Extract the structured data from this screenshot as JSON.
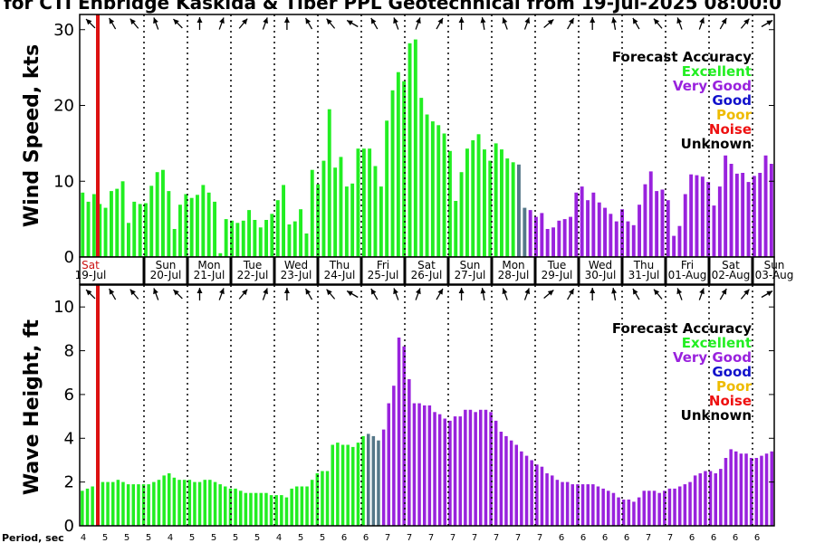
{
  "title": "for CTI Enbridge  Kaskida & Tiber PPL Geotechnical from 19-Jul-2025 08:00:0",
  "colors": {
    "Excellent": "#22ee22",
    "Very Good": "#9922dd",
    "Good": "#1111cc",
    "Poor": "#eebb00",
    "Noise": "#ee1111",
    "Unknown": "#000000",
    "transition": "#557788",
    "now_line": "#dd1111"
  },
  "legend": {
    "title": "Forecast Accuracy",
    "entries": [
      "Excellent",
      "Very Good",
      "Good",
      "Poor",
      "Noise",
      "Unknown"
    ]
  },
  "days": [
    {
      "name": "Sat",
      "date": "19-Jul"
    },
    {
      "name": "Sun",
      "date": "20-Jul"
    },
    {
      "name": "Mon",
      "date": "21-Jul"
    },
    {
      "name": "Tue",
      "date": "22-Jul"
    },
    {
      "name": "Wed",
      "date": "23-Jul"
    },
    {
      "name": "Thu",
      "date": "24-Jul"
    },
    {
      "name": "Fri",
      "date": "25-Jul"
    },
    {
      "name": "Sat",
      "date": "26-Jul"
    },
    {
      "name": "Sun",
      "date": "27-Jul"
    },
    {
      "name": "Mon",
      "date": "28-Jul"
    },
    {
      "name": "Tue",
      "date": "29-Jul"
    },
    {
      "name": "Wed",
      "date": "30-Jul"
    },
    {
      "name": "Thu",
      "date": "31-Jul"
    },
    {
      "name": "Fri",
      "date": "01-Aug"
    },
    {
      "name": "Sat",
      "date": "02-Aug"
    },
    {
      "name": "Sun",
      "date": "03-Aug"
    }
  ],
  "period_label": "Period, sec",
  "chart_data": [
    {
      "type": "bar",
      "ylabel": "Wind Speed, kts",
      "ylim": [
        0,
        32
      ],
      "yticks": [
        0,
        10,
        20,
        30
      ],
      "values": [
        8.5,
        7.3,
        8.3,
        7.0,
        6.5,
        8.7,
        9.0,
        10.0,
        4.5,
        7.3,
        7.0,
        7.1,
        9.4,
        11.2,
        11.5,
        8.7,
        3.7,
        6.9,
        8.3,
        7.8,
        8.2,
        9.5,
        8.5,
        7.3,
        0.5,
        5.0,
        4.8,
        4.5,
        4.8,
        6.2,
        4.9,
        3.9,
        4.9,
        5.7,
        7.5,
        9.5,
        4.3,
        4.7,
        6.3,
        3.1,
        11.5,
        9.6,
        12.7,
        19.5,
        11.8,
        13.2,
        9.3,
        9.7,
        14.3,
        14.3,
        14.3,
        12.0,
        9.3,
        18.0,
        22.0,
        24.4,
        23.2,
        28.2,
        28.7,
        21.0,
        18.8,
        17.9,
        17.4,
        16.3,
        14.0,
        7.4,
        11.2,
        14.3,
        15.4,
        16.2,
        14.2,
        12.7,
        15.0,
        14.2,
        13.0,
        12.5,
        12.2,
        6.5,
        6.2,
        5.3,
        5.8,
        3.7,
        3.9,
        4.8,
        5.0,
        5.3,
        8.5,
        9.3,
        7.5,
        8.5,
        7.2,
        6.5,
        5.7,
        4.7,
        6.3,
        4.7,
        4.2,
        6.9,
        9.6,
        11.3,
        8.7,
        8.9,
        7.5,
        2.8,
        4.1,
        8.3,
        10.9,
        10.8,
        10.6,
        9.9,
        6.8,
        9.3,
        13.4,
        12.3,
        11.0,
        11.1,
        9.9,
        10.7,
        11.1,
        13.4,
        12.3
      ],
      "categories_split": {
        "excellent_end": 77,
        "transition": [
          76,
          77
        ]
      }
    },
    {
      "type": "bar",
      "ylabel": "Wave Height, ft",
      "ylim": [
        0,
        11
      ],
      "yticks": [
        0,
        2,
        4,
        6,
        8,
        10
      ],
      "values": [
        1.6,
        1.7,
        1.8,
        1.8,
        2.0,
        2.0,
        2.0,
        2.1,
        2.0,
        1.9,
        1.9,
        1.9,
        1.9,
        1.9,
        2.0,
        2.1,
        2.3,
        2.4,
        2.2,
        2.1,
        2.1,
        2.1,
        2.0,
        2.0,
        2.1,
        2.1,
        2.0,
        1.9,
        1.8,
        1.7,
        1.7,
        1.6,
        1.5,
        1.5,
        1.5,
        1.5,
        1.5,
        1.4,
        1.4,
        1.4,
        1.3,
        1.7,
        1.8,
        1.8,
        1.8,
        2.1,
        2.4,
        2.5,
        2.5,
        3.7,
        3.8,
        3.7,
        3.7,
        3.6,
        3.8,
        4.1,
        4.2,
        4.1,
        3.9,
        4.4,
        5.6,
        6.4,
        8.6,
        8.2,
        6.7,
        5.6,
        5.6,
        5.5,
        5.5,
        5.2,
        5.1,
        4.9,
        4.8,
        5.0,
        5.0,
        5.3,
        5.3,
        5.2,
        5.3,
        5.3,
        5.2,
        4.8,
        4.3,
        4.1,
        3.9,
        3.7,
        3.4,
        3.2,
        3.0,
        2.8,
        2.7,
        2.4,
        2.3,
        2.1,
        2.0,
        2.0,
        1.9,
        1.9,
        1.9,
        1.9,
        1.9,
        1.8,
        1.7,
        1.6,
        1.5,
        1.3,
        1.2,
        1.2,
        1.1,
        1.3,
        1.6,
        1.6,
        1.6,
        1.5,
        1.6,
        1.7,
        1.7,
        1.8,
        1.9,
        2.0,
        2.3,
        2.4,
        2.5,
        2.5,
        2.4,
        2.6,
        3.1,
        3.5,
        3.4,
        3.3,
        3.3,
        3.1,
        3.1,
        3.2,
        3.3,
        3.4
      ],
      "categories_split": {
        "excellent_end": 56,
        "transition": [
          56,
          58
        ]
      }
    }
  ],
  "period_values": [
    "4",
    "5",
    "5",
    "5",
    "4",
    "5",
    "5",
    "5",
    "5",
    "4",
    "5",
    "5",
    "6",
    "6",
    "7",
    "7",
    "7",
    "7",
    "7",
    "7",
    "7",
    "7",
    "6",
    "6",
    "6",
    "6",
    "7",
    "7",
    "6",
    "6",
    "6",
    "6"
  ]
}
